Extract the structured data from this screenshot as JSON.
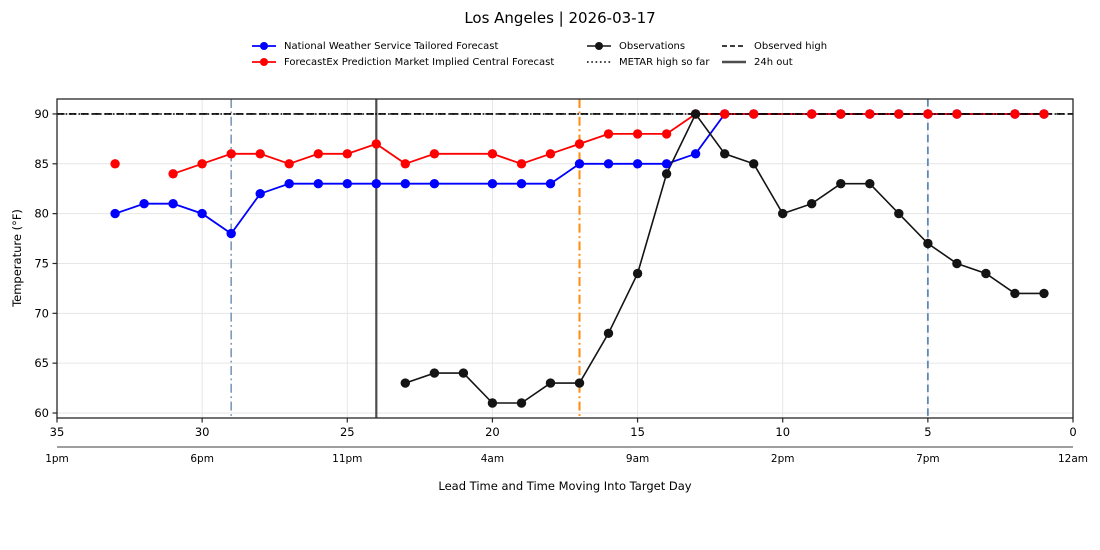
{
  "title": "Los Angeles | 2026-03-17",
  "legend": {
    "nws": "National Weather Service Tailored Forecast",
    "forecastex": "ForecastEx Prediction Market Implied Central Forecast",
    "observations": "Observations",
    "metar": "METAR high so far",
    "observed_high": "Observed high",
    "h24": "24h out"
  },
  "colors": {
    "nws": "#0000ff",
    "forecastex": "#ff0000",
    "observations": "#141414",
    "observed_high": "#000000",
    "metar": "#000000",
    "h24": "#4d4d4d",
    "grid": "#e6e6e6",
    "spine": "#262626",
    "secondary_spine": "#7f7f7f"
  },
  "chart_data": {
    "type": "line",
    "title": "Los Angeles | 2026-03-17",
    "xlabel": "Lead Time and Time Moving Into Target Day",
    "ylabel": "Temperature (°F)",
    "x_axis": {
      "lim": [
        35,
        0
      ],
      "inverted": true,
      "ticks": [
        35,
        30,
        25,
        20,
        15,
        10,
        5,
        0
      ],
      "time_labels": [
        "1pm",
        "6pm",
        "11pm",
        "4am",
        "9am",
        "2pm",
        "7pm",
        "12am"
      ]
    },
    "y_axis": {
      "lim": [
        59.5,
        91.5
      ],
      "ticks": [
        60,
        65,
        70,
        75,
        80,
        85,
        90
      ]
    },
    "grid": true,
    "legend_position": "top-center",
    "series": [
      {
        "name": "National Weather Service Tailored Forecast",
        "color": "#0000ff",
        "line_width": 1.8,
        "marker_radius": 4.7,
        "points": [
          [
            33,
            80
          ],
          [
            32,
            81
          ],
          [
            31,
            81
          ],
          [
            30,
            80
          ],
          [
            29,
            78
          ],
          [
            28,
            82
          ],
          [
            27,
            83
          ],
          [
            26,
            83
          ],
          [
            25,
            83
          ],
          [
            24,
            83
          ],
          [
            23,
            83
          ],
          [
            22,
            83
          ],
          [
            20,
            83
          ],
          [
            19,
            83
          ],
          [
            18,
            83
          ],
          [
            17,
            85
          ],
          [
            16,
            85
          ],
          [
            15,
            85
          ],
          [
            14,
            85
          ],
          [
            13,
            86
          ],
          [
            12,
            90
          ],
          [
            11,
            90
          ],
          [
            9,
            90
          ],
          [
            8,
            90
          ],
          [
            7,
            90
          ],
          [
            6,
            90
          ],
          [
            5,
            90
          ],
          [
            4,
            90
          ],
          [
            2,
            90
          ],
          [
            1,
            90
          ]
        ],
        "breaks": []
      },
      {
        "name": "ForecastEx Prediction Market Implied Central Forecast",
        "color": "#ff0000",
        "line_width": 1.8,
        "marker_radius": 4.7,
        "points": [
          [
            33,
            85
          ],
          [
            31,
            84
          ],
          [
            30,
            85
          ],
          [
            29,
            86
          ],
          [
            28,
            86
          ],
          [
            27,
            85
          ],
          [
            26,
            86
          ],
          [
            25,
            86
          ],
          [
            24,
            87
          ],
          [
            23,
            85
          ],
          [
            22,
            86
          ],
          [
            20,
            86
          ],
          [
            19,
            85
          ],
          [
            18,
            86
          ],
          [
            17,
            87
          ],
          [
            16,
            88
          ],
          [
            15,
            88
          ],
          [
            14,
            88
          ],
          [
            13,
            90
          ],
          [
            12,
            90
          ],
          [
            11,
            90
          ],
          [
            9,
            90
          ],
          [
            8,
            90
          ],
          [
            7,
            90
          ],
          [
            6,
            90
          ],
          [
            5,
            90
          ],
          [
            4,
            90
          ],
          [
            2,
            90
          ],
          [
            1,
            90
          ]
        ],
        "breaks": [
          [
            33,
            31
          ]
        ]
      },
      {
        "name": "Observations",
        "color": "#141414",
        "line_width": 1.6,
        "marker_radius": 4.7,
        "points": [
          [
            23,
            63
          ],
          [
            22,
            64
          ],
          [
            21,
            64
          ],
          [
            20,
            61
          ],
          [
            19,
            61
          ],
          [
            18,
            63
          ],
          [
            17,
            63
          ],
          [
            16,
            68
          ],
          [
            15,
            74
          ],
          [
            14,
            84
          ],
          [
            13,
            90
          ],
          [
            12,
            86
          ],
          [
            11,
            85
          ],
          [
            10,
            80
          ],
          [
            9,
            81
          ],
          [
            8,
            83
          ],
          [
            7,
            83
          ],
          [
            6,
            80
          ],
          [
            5,
            77
          ],
          [
            4,
            75
          ],
          [
            3,
            74
          ],
          [
            2,
            72
          ],
          [
            1,
            72
          ]
        ],
        "breaks": []
      }
    ],
    "hlines": [
      {
        "y": 90,
        "style": "dotted",
        "color": "#000000",
        "width": 1.5,
        "legend": "METAR high so far"
      },
      {
        "y": 90,
        "style": "dashed",
        "color": "#000000",
        "width": 1.6,
        "legend": "Observed high"
      }
    ],
    "vlines": [
      {
        "x": 29,
        "style": "dashdot",
        "color": "#7d9ab8",
        "width": 1.6
      },
      {
        "x": 24,
        "style": "solid",
        "color": "#4d4d4d",
        "width": 2.2,
        "legend": "24h out"
      },
      {
        "x": 17,
        "style": "dashdot",
        "color": "#ff8c0e",
        "width": 2.0
      },
      {
        "x": 5,
        "style": "dashed",
        "color": "#5f87b5",
        "width": 1.8
      }
    ]
  }
}
